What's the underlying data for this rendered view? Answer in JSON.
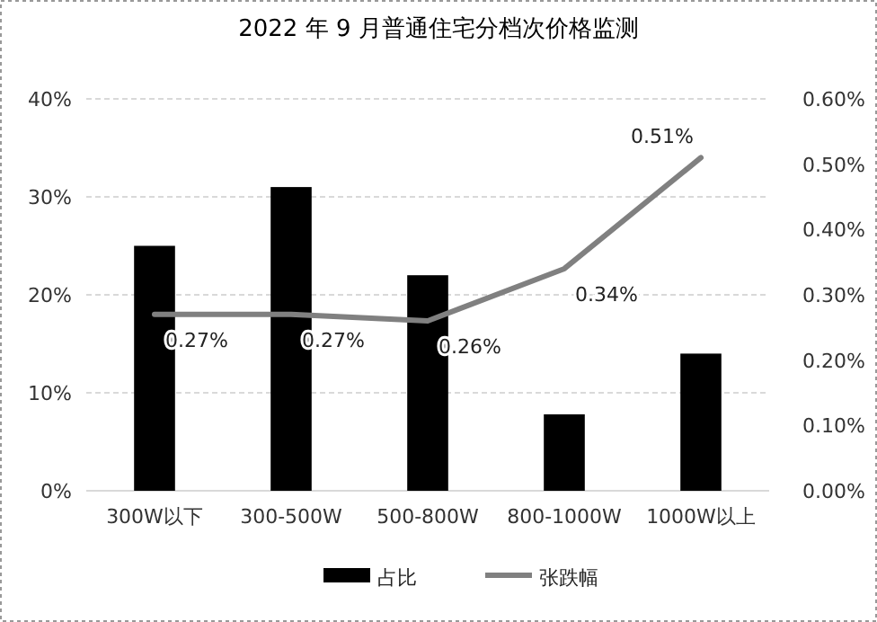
{
  "chart_data": {
    "type": "bar",
    "title": "2022 年 9 月普通住宅分档次价格监测",
    "categories": [
      "300W以下",
      "300-500W",
      "500-800W",
      "800-1000W",
      "1000W以上"
    ],
    "series": [
      {
        "name": "占比",
        "color": "#000000",
        "values": [
          25,
          31,
          22,
          7.8,
          14
        ]
      },
      {
        "name": "张跌幅",
        "type": "line",
        "axis": "y2",
        "color": "#808080",
        "values": [
          0.27,
          0.27,
          0.26,
          0.34,
          0.51
        ],
        "value_labels": [
          "0.27%",
          "0.27%",
          "0.26%",
          "0.34%",
          "0.51%"
        ]
      }
    ],
    "ylim": [
      0,
      40
    ],
    "yticks": [
      {
        "value": 0,
        "label": "0%"
      },
      {
        "value": 10,
        "label": "10%"
      },
      {
        "value": 20,
        "label": "20%"
      },
      {
        "value": 30,
        "label": "30%"
      },
      {
        "value": 40,
        "label": "40%"
      }
    ],
    "y2lim": [
      0,
      0.6
    ],
    "y2ticks": [
      {
        "value": 0,
        "label": "0.00%"
      },
      {
        "value": 0.1,
        "label": "0.10%"
      },
      {
        "value": 0.2,
        "label": "0.20%"
      },
      {
        "value": 0.3,
        "label": "0.30%"
      },
      {
        "value": 0.4,
        "label": "0.40%"
      },
      {
        "value": 0.5,
        "label": "0.50%"
      },
      {
        "value": 0.6,
        "label": "0.60%"
      }
    ],
    "grid": "y",
    "legend": "bottom",
    "marker": "none",
    "line_style": "solid"
  }
}
